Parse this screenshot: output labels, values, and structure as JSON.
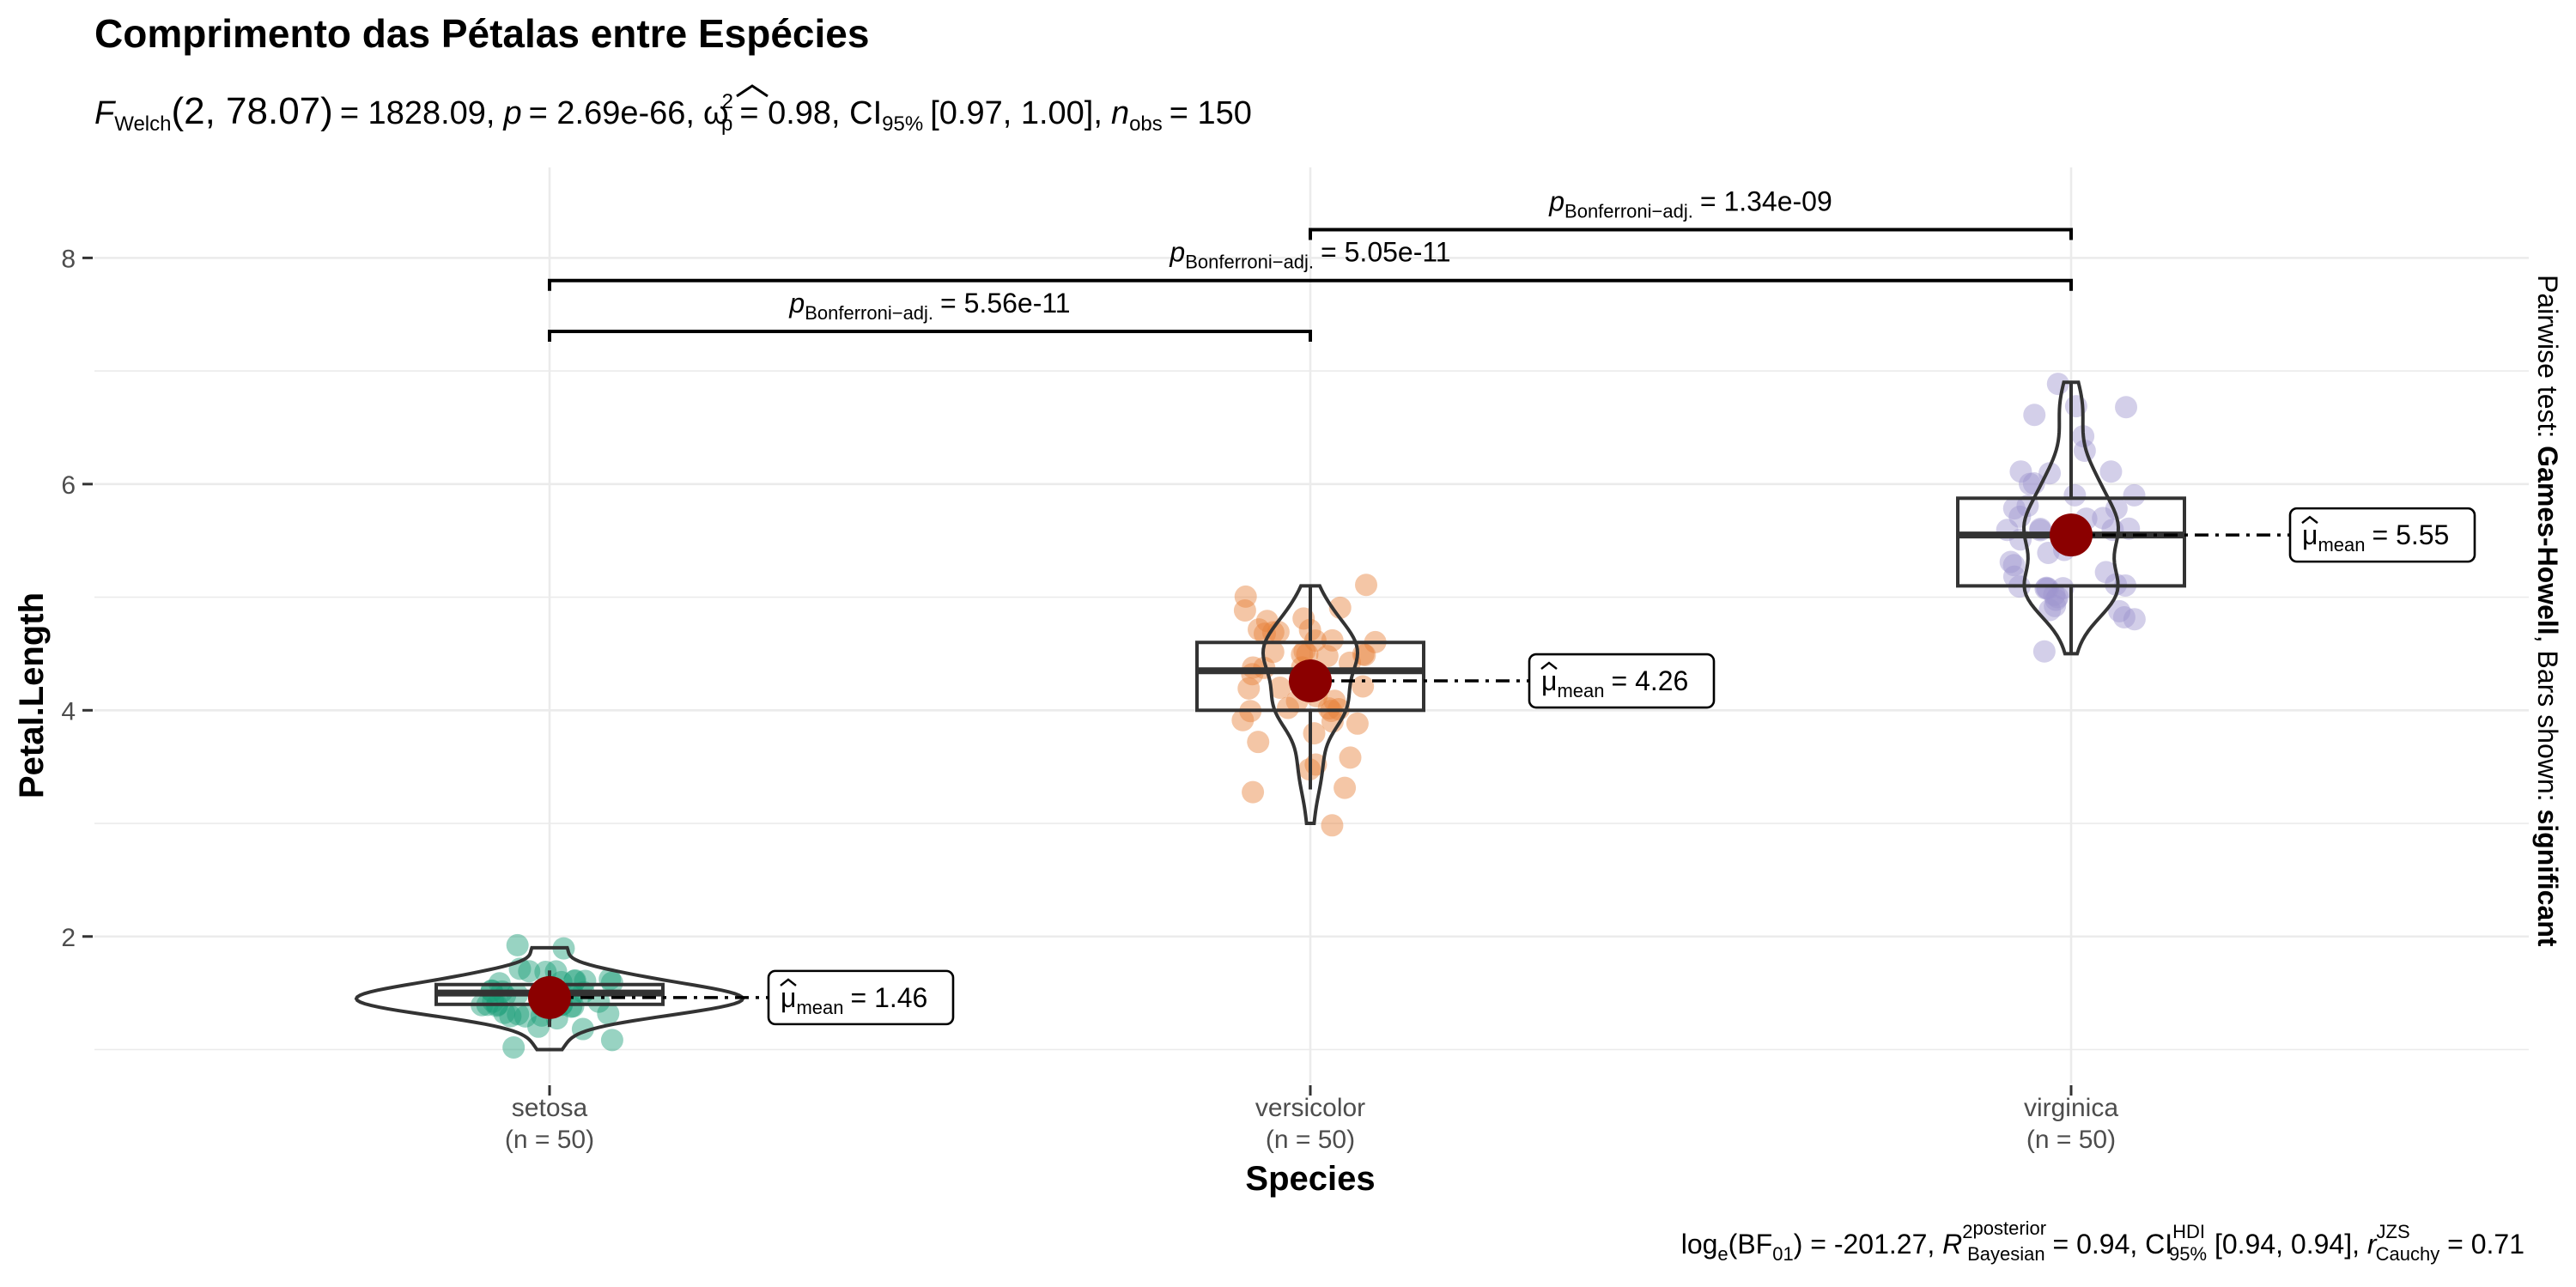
{
  "chart_data": {
    "type": "violin",
    "title": "Comprimento das Pétalas entre Espécies",
    "subtitle": {
      "stat": "F",
      "stat_sub": "Welch",
      "dfs": "(2, 78.07)",
      "value": "= 1828.09,",
      "p_label": "p",
      "p_value": "= 2.69e-66,",
      "effsize_label": "ω",
      "effsize_sup": "2",
      "effsize_sub": "p",
      "effsize_value": "= 0.98, CI",
      "ci_sub": "95%",
      "ci_value": "[0.97, 1.00],",
      "n_label": "n",
      "n_sub": "obs",
      "n_value": "= 150"
    },
    "xlabel": "Species",
    "ylabel": "Petal.Length",
    "ylim": [
      0.7,
      8.8
    ],
    "y_ticks": [
      2,
      4,
      6,
      8
    ],
    "y_tick_labels": [
      "2",
      "4",
      "6",
      "8"
    ],
    "categories": [
      "setosa",
      "versicolor",
      "virginica"
    ],
    "n_labels": [
      "(n = 50)",
      "(n = 50)",
      "(n = 50)"
    ],
    "colors": [
      "#1B9E77",
      "#E6813A",
      "#9E94CF"
    ],
    "mean_color": "#8B0000",
    "groups": [
      {
        "name": "setosa",
        "box": {
          "q1": 1.4,
          "median": 1.5,
          "q3": 1.575,
          "whisker_low": 1.2,
          "whisker_high": 1.7
        },
        "mean": 1.46,
        "mean_label_prefix": "μ",
        "mean_label_sub": "mean",
        "mean_label_value": "= 1.46",
        "points": [
          1.4,
          1.4,
          1.3,
          1.5,
          1.4,
          1.7,
          1.4,
          1.5,
          1.4,
          1.5,
          1.5,
          1.6,
          1.4,
          1.1,
          1.2,
          1.5,
          1.3,
          1.4,
          1.7,
          1.5,
          1.7,
          1.5,
          1.0,
          1.7,
          1.9,
          1.6,
          1.6,
          1.5,
          1.4,
          1.6,
          1.6,
          1.5,
          1.5,
          1.4,
          1.5,
          1.2,
          1.3,
          1.4,
          1.3,
          1.5,
          1.3,
          1.3,
          1.3,
          1.6,
          1.9,
          1.4,
          1.6,
          1.4,
          1.5,
          1.4
        ]
      },
      {
        "name": "versicolor",
        "box": {
          "q1": 4.0,
          "median": 4.35,
          "q3": 4.6,
          "whisker_low": 3.3,
          "whisker_high": 5.1
        },
        "mean": 4.26,
        "mean_label_prefix": "μ",
        "mean_label_sub": "mean",
        "mean_label_value": "= 4.26",
        "points": [
          4.7,
          4.5,
          4.9,
          4.0,
          4.6,
          4.5,
          4.7,
          3.3,
          4.6,
          3.9,
          3.5,
          4.2,
          4.0,
          4.7,
          3.6,
          4.4,
          4.5,
          4.1,
          4.5,
          3.9,
          4.8,
          4.0,
          4.9,
          4.7,
          4.3,
          4.4,
          4.8,
          5.0,
          4.5,
          3.5,
          3.8,
          3.7,
          3.9,
          5.1,
          4.5,
          4.5,
          4.7,
          4.4,
          4.1,
          4.0,
          4.4,
          4.6,
          4.0,
          3.3,
          4.2,
          4.2,
          4.2,
          4.3,
          3.0,
          4.1
        ]
      },
      {
        "name": "virginica",
        "box": {
          "q1": 5.1,
          "median": 5.55,
          "q3": 5.875,
          "whisker_low": 4.5,
          "whisker_high": 6.9
        },
        "mean": 5.55,
        "mean_label_prefix": "μ",
        "mean_label_sub": "mean",
        "mean_label_value": "= 5.55",
        "points": [
          6.0,
          5.1,
          5.9,
          5.6,
          5.8,
          6.6,
          4.5,
          6.3,
          5.8,
          6.1,
          5.1,
          5.3,
          5.5,
          5.0,
          5.1,
          5.3,
          5.5,
          6.7,
          6.9,
          5.0,
          5.7,
          4.9,
          6.7,
          4.9,
          5.7,
          6.0,
          4.8,
          4.9,
          5.6,
          5.8,
          6.1,
          6.4,
          5.6,
          5.1,
          5.6,
          6.1,
          5.6,
          5.5,
          4.8,
          5.4,
          5.6,
          5.1,
          5.1,
          5.9,
          5.7,
          5.2,
          5.0,
          5.2,
          5.4,
          5.1
        ]
      }
    ],
    "comparisons": [
      {
        "from": 0,
        "to": 1,
        "level": 7.35,
        "label_prefix": "p",
        "label_sub": "Bonferroni−adj.",
        "label_value": "= 5.56e-11"
      },
      {
        "from": 0,
        "to": 2,
        "level": 7.8,
        "label_prefix": "p",
        "label_sub": "Bonferroni−adj.",
        "label_value": "= 5.05e-11"
      },
      {
        "from": 1,
        "to": 2,
        "level": 8.25,
        "label_prefix": "p",
        "label_sub": "Bonferroni−adj.",
        "label_value": "= 1.34e-09"
      }
    ],
    "side_caption": {
      "prefix": "Pairwise test: ",
      "method": "Games-Howell",
      "middle": ", Bars shown: ",
      "shown": "significant"
    },
    "caption": {
      "t1": "log",
      "t1_sub": "e",
      "t2": "(BF",
      "t2_sub": "01",
      "t3": ") = -201.27, ",
      "r_label": "R",
      "r_sup_hat": "2",
      "r_sup": "posterior",
      "r_sub": "Bayesian",
      "t4": " = 0.94, CI",
      "ci_sup": "HDI",
      "ci_sub": "95%",
      "t5": " [0.94, 0.94], ",
      "rc_label": "r",
      "rc_sup": "JZS",
      "rc_sub": "Cauchy",
      "t6": " = 0.71"
    },
    "grid": true,
    "legend": "none"
  }
}
